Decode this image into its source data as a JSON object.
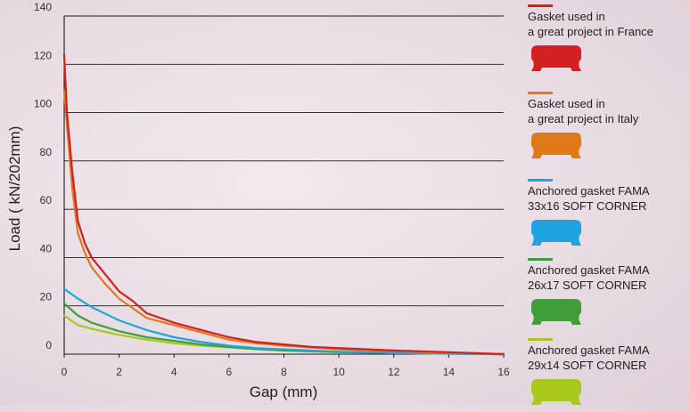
{
  "chart_data": {
    "type": "line",
    "title": "",
    "xlabel": "Gap (mm)",
    "ylabel": "Load ( kN/202mm)",
    "xlim": [
      0,
      16
    ],
    "ylim": [
      0,
      140
    ],
    "x_ticks": [
      "0",
      "2",
      "4",
      "6",
      "8",
      "10",
      "12",
      "14",
      "16"
    ],
    "y_ticks": [
      "0",
      "20",
      "40",
      "60",
      "80",
      "100",
      "120",
      "140"
    ],
    "grid": "horizontal",
    "legend_position": "right",
    "series": [
      {
        "name": "Gasket used in\na great project in France",
        "color": "#d42020",
        "points": [
          [
            0,
            124
          ],
          [
            0.1,
            100
          ],
          [
            0.3,
            75
          ],
          [
            0.5,
            55
          ],
          [
            0.75,
            46
          ],
          [
            1,
            40
          ],
          [
            1.5,
            33
          ],
          [
            2,
            26
          ],
          [
            2.5,
            22
          ],
          [
            3,
            17
          ],
          [
            4,
            13
          ],
          [
            5,
            10
          ],
          [
            6,
            7
          ],
          [
            7,
            5
          ],
          [
            8,
            4
          ],
          [
            9,
            3
          ],
          [
            10,
            2.5
          ],
          [
            12,
            1.5
          ],
          [
            14,
            0.8
          ],
          [
            16,
            0
          ]
        ]
      },
      {
        "name": "Gasket used in\na great project in Italy",
        "color": "#e07a18",
        "points": [
          [
            0,
            109
          ],
          [
            0.1,
            95
          ],
          [
            0.3,
            68
          ],
          [
            0.5,
            50
          ],
          [
            0.75,
            42
          ],
          [
            1,
            36
          ],
          [
            1.5,
            29
          ],
          [
            2,
            23
          ],
          [
            2.5,
            19
          ],
          [
            3,
            15
          ],
          [
            4,
            12
          ],
          [
            5,
            9
          ],
          [
            6,
            6
          ],
          [
            7,
            4.5
          ],
          [
            8,
            3.5
          ],
          [
            9,
            2.8
          ],
          [
            10,
            2
          ],
          [
            12,
            1.2
          ],
          [
            14,
            0.6
          ],
          [
            16,
            0
          ]
        ]
      },
      {
        "name": "Anchored gasket FAMA\n33x16 SOFT CORNER",
        "color": "#1ea4e0",
        "points": [
          [
            0,
            27
          ],
          [
            0.5,
            23
          ],
          [
            1,
            19.5
          ],
          [
            2,
            14
          ],
          [
            3,
            10
          ],
          [
            4,
            7
          ],
          [
            5,
            5
          ],
          [
            6,
            3.5
          ],
          [
            7,
            2.5
          ],
          [
            8,
            2
          ],
          [
            9,
            1.5
          ],
          [
            10,
            1
          ],
          [
            12,
            0.5
          ],
          [
            14,
            0.2
          ],
          [
            16,
            0
          ]
        ]
      },
      {
        "name": "Anchored gasket FAMA\n26x17 SOFT CORNER",
        "color": "#3f9e3a",
        "points": [
          [
            0,
            21
          ],
          [
            0.5,
            16
          ],
          [
            1,
            13
          ],
          [
            2,
            9.5
          ],
          [
            3,
            7
          ],
          [
            4,
            5.5
          ],
          [
            5,
            4
          ],
          [
            6,
            3
          ],
          [
            7,
            2.2
          ],
          [
            8,
            1.5
          ],
          [
            9,
            1.2
          ],
          [
            10,
            0.9
          ],
          [
            12,
            0.5
          ],
          [
            14,
            0.2
          ],
          [
            16,
            0
          ]
        ]
      },
      {
        "name": "Anchored gasket FAMA\n29x14 SOFT CORNER",
        "color": "#a8c81e",
        "points": [
          [
            0,
            16
          ],
          [
            0.5,
            12
          ],
          [
            1,
            10.5
          ],
          [
            2,
            8
          ],
          [
            3,
            6
          ],
          [
            4,
            4.5
          ],
          [
            5,
            3.5
          ],
          [
            6,
            2.8
          ],
          [
            7,
            2
          ],
          [
            8,
            1.5
          ],
          [
            9,
            1.1
          ],
          [
            10,
            0.8
          ],
          [
            12,
            0.5
          ],
          [
            14,
            0.2
          ],
          [
            16,
            0
          ]
        ]
      }
    ]
  }
}
